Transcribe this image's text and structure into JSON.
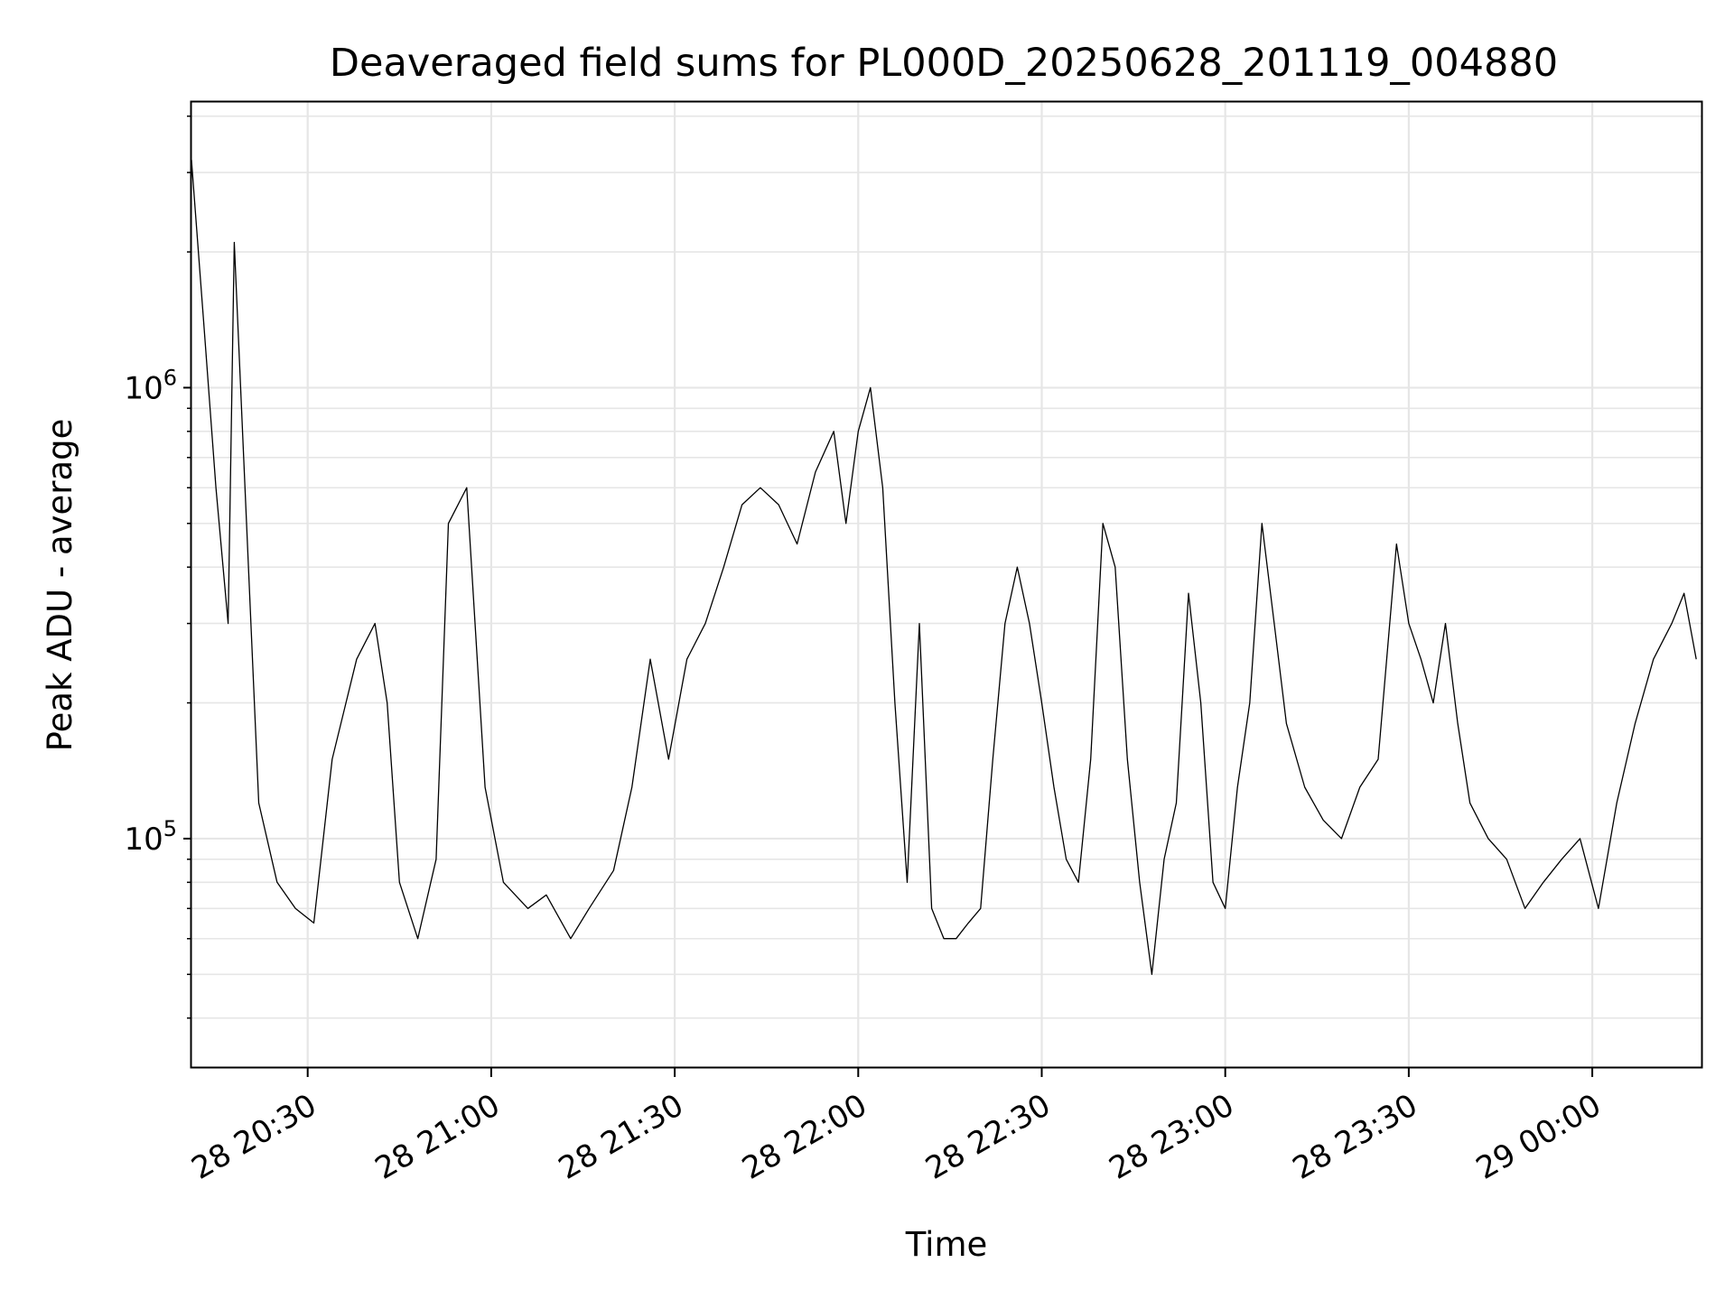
{
  "chart_data": {
    "type": "line",
    "title": "Deaveraged field sums for PL000D_20250628_201119_004880",
    "xlabel": "Time",
    "ylabel": "Peak ADU - average",
    "yscale": "log",
    "ylim": [
      31000,
      4300000
    ],
    "xlim": [
      "2025-06-28 20:11",
      "2025-06-29 00:18"
    ],
    "x_ticks": [
      {
        "t": "2025-06-28 20:30",
        "label": "28 20:30"
      },
      {
        "t": "2025-06-28 21:00",
        "label": "28 21:00"
      },
      {
        "t": "2025-06-28 21:30",
        "label": "28 21:30"
      },
      {
        "t": "2025-06-28 22:00",
        "label": "28 22:00"
      },
      {
        "t": "2025-06-28 22:30",
        "label": "28 22:30"
      },
      {
        "t": "2025-06-28 23:00",
        "label": "28 23:00"
      },
      {
        "t": "2025-06-28 23:30",
        "label": "28 23:30"
      },
      {
        "t": "2025-06-29 00:00",
        "label": "29 00:00"
      }
    ],
    "y_ticks": [
      {
        "value": 100000,
        "base": "10",
        "exp": "5"
      },
      {
        "value": 1000000,
        "base": "10",
        "exp": "6"
      }
    ],
    "grid": true,
    "line_color": "#000000",
    "grid_color": "#e6e6e6",
    "series": [
      {
        "x": [
          "2025-06-28 20:11",
          "2025-06-28 20:13",
          "2025-06-28 20:15",
          "2025-06-28 20:17",
          "2025-06-28 20:18",
          "2025-06-28 20:20",
          "2025-06-28 20:22",
          "2025-06-28 20:25",
          "2025-06-28 20:28",
          "2025-06-28 20:31",
          "2025-06-28 20:34",
          "2025-06-28 20:38",
          "2025-06-28 20:41",
          "2025-06-28 20:43",
          "2025-06-28 20:45",
          "2025-06-28 20:48",
          "2025-06-28 20:51",
          "2025-06-28 20:53",
          "2025-06-28 20:56",
          "2025-06-28 20:59",
          "2025-06-28 21:02",
          "2025-06-28 21:06",
          "2025-06-28 21:09",
          "2025-06-28 21:13",
          "2025-06-28 21:16",
          "2025-06-28 21:20",
          "2025-06-28 21:23",
          "2025-06-28 21:26",
          "2025-06-28 21:29",
          "2025-06-28 21:32",
          "2025-06-28 21:35",
          "2025-06-28 21:38",
          "2025-06-28 21:41",
          "2025-06-28 21:44",
          "2025-06-28 21:47",
          "2025-06-28 21:50",
          "2025-06-28 21:53",
          "2025-06-28 21:56",
          "2025-06-28 21:58",
          "2025-06-28 22:00",
          "2025-06-28 22:02",
          "2025-06-28 22:04",
          "2025-06-28 22:06",
          "2025-06-28 22:08",
          "2025-06-28 22:10",
          "2025-06-28 22:12",
          "2025-06-28 22:14",
          "2025-06-28 22:16",
          "2025-06-28 22:18",
          "2025-06-28 22:20",
          "2025-06-28 22:22",
          "2025-06-28 22:24",
          "2025-06-28 22:26",
          "2025-06-28 22:28",
          "2025-06-28 22:30",
          "2025-06-28 22:32",
          "2025-06-28 22:34",
          "2025-06-28 22:36",
          "2025-06-28 22:38",
          "2025-06-28 22:40",
          "2025-06-28 22:42",
          "2025-06-28 22:44",
          "2025-06-28 22:46",
          "2025-06-28 22:48",
          "2025-06-28 22:50",
          "2025-06-28 22:52",
          "2025-06-28 22:54",
          "2025-06-28 22:56",
          "2025-06-28 22:58",
          "2025-06-28 23:00",
          "2025-06-28 23:02",
          "2025-06-28 23:04",
          "2025-06-28 23:06",
          "2025-06-28 23:08",
          "2025-06-28 23:10",
          "2025-06-28 23:13",
          "2025-06-28 23:16",
          "2025-06-28 23:19",
          "2025-06-28 23:22",
          "2025-06-28 23:25",
          "2025-06-28 23:28",
          "2025-06-28 23:30",
          "2025-06-28 23:32",
          "2025-06-28 23:34",
          "2025-06-28 23:36",
          "2025-06-28 23:38",
          "2025-06-28 23:40",
          "2025-06-28 23:43",
          "2025-06-28 23:46",
          "2025-06-28 23:49",
          "2025-06-28 23:52",
          "2025-06-28 23:55",
          "2025-06-28 23:58",
          "2025-06-29 00:01",
          "2025-06-29 00:04",
          "2025-06-29 00:07",
          "2025-06-29 00:10",
          "2025-06-29 00:13",
          "2025-06-29 00:15",
          "2025-06-29 00:17"
        ],
        "y": [
          3200000,
          1400000,
          600000,
          300000,
          2100000,
          500000,
          120000,
          80000,
          70000,
          65000,
          150000,
          250000,
          300000,
          200000,
          80000,
          60000,
          90000,
          500000,
          600000,
          130000,
          80000,
          70000,
          75000,
          60000,
          70000,
          85000,
          130000,
          250000,
          150000,
          250000,
          300000,
          400000,
          550000,
          600000,
          550000,
          450000,
          650000,
          800000,
          500000,
          800000,
          1000000,
          600000,
          200000,
          80000,
          300000,
          70000,
          60000,
          60000,
          65000,
          70000,
          150000,
          300000,
          400000,
          300000,
          200000,
          130000,
          90000,
          80000,
          150000,
          500000,
          400000,
          150000,
          80000,
          50000,
          90000,
          120000,
          350000,
          200000,
          80000,
          70000,
          130000,
          200000,
          500000,
          300000,
          180000,
          130000,
          110000,
          100000,
          130000,
          150000,
          450000,
          300000,
          250000,
          200000,
          300000,
          180000,
          120000,
          100000,
          90000,
          70000,
          80000,
          90000,
          100000,
          70000,
          120000,
          180000,
          250000,
          300000,
          350000,
          250000
        ]
      }
    ]
  }
}
